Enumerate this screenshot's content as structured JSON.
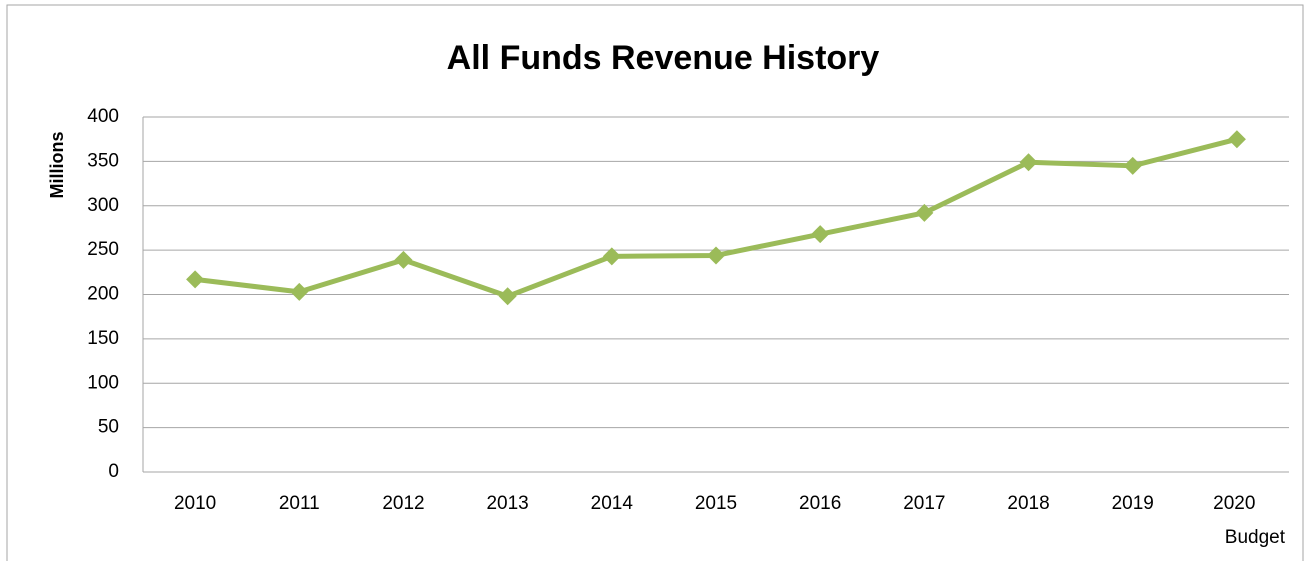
{
  "chart_data": {
    "type": "line",
    "title": "All Funds Revenue History",
    "y_label": "Millions",
    "categories": [
      "2010",
      "2011",
      "2012",
      "2013",
      "2014",
      "2015",
      "2016",
      "2017",
      "2018",
      "2019",
      "2020 Budget"
    ],
    "series": [
      {
        "name": "All Funds Revenue",
        "color": "#9bbb59",
        "values": [
          217,
          203,
          239,
          198,
          243,
          244,
          268,
          292,
          349,
          345,
          375
        ]
      }
    ],
    "ylim": [
      0,
      400
    ],
    "yticks": [
      0,
      50,
      100,
      150,
      200,
      250,
      300,
      350,
      400
    ],
    "grid": true,
    "legend": false
  }
}
